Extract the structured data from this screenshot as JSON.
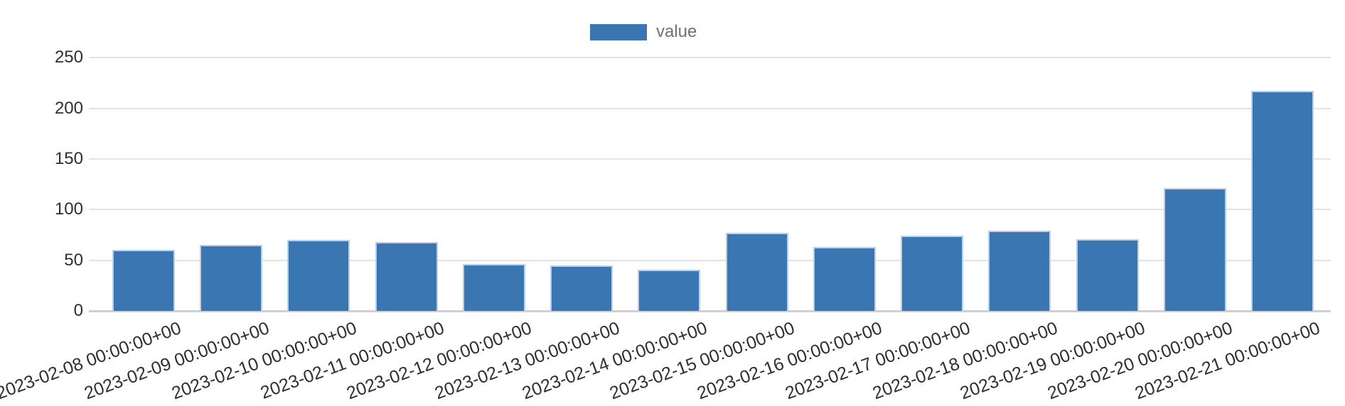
{
  "legend": {
    "label": "value",
    "swatch_color": "#3a76b1"
  },
  "chart_data": {
    "type": "bar",
    "title": "",
    "xlabel": "",
    "ylabel": "",
    "series_name": "value",
    "categories": [
      "2023-02-08 00:00:00+00",
      "2023-02-09 00:00:00+00",
      "2023-02-10 00:00:00+00",
      "2023-02-11 00:00:00+00",
      "2023-02-12 00:00:00+00",
      "2023-02-13 00:00:00+00",
      "2023-02-14 00:00:00+00",
      "2023-02-15 00:00:00+00",
      "2023-02-16 00:00:00+00",
      "2023-02-17 00:00:00+00",
      "2023-02-18 00:00:00+00",
      "2023-02-19 00:00:00+00",
      "2023-02-20 00:00:00+00",
      "2023-02-21 00:00:00+00"
    ],
    "values": [
      60,
      65,
      70,
      68,
      46,
      45,
      41,
      77,
      63,
      74,
      79,
      71,
      121,
      217
    ],
    "ylim": [
      0,
      250
    ],
    "yticks": [
      0,
      50,
      100,
      150,
      200,
      250
    ],
    "grid": true,
    "legend_position": "top-center",
    "x_label_rotation_deg": -20,
    "colors": {
      "bar_fill": "#3a76b1",
      "bar_border": "#bad0e8",
      "gridline": "#e2e2e7",
      "axis_line": "#cfcfd4",
      "tick_text": "#2f2f2f",
      "legend_text": "#707070"
    }
  }
}
